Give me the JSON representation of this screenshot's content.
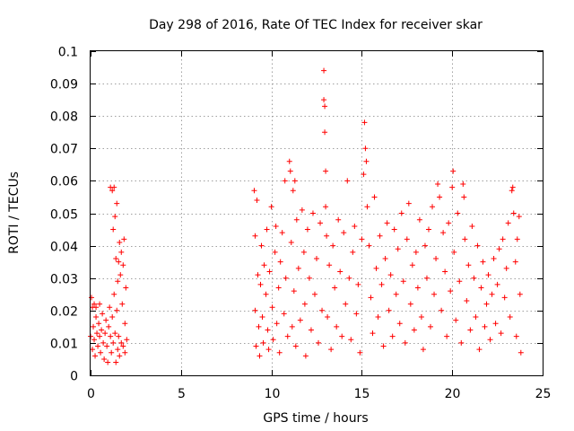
{
  "chart_data": {
    "type": "scatter",
    "title": "Day 298 of 2016, Rate Of TEC Index for receiver skar",
    "xlabel": "GPS time / hours",
    "ylabel": "ROTI / TECUs",
    "xlim": [
      0,
      25
    ],
    "ylim": [
      0,
      0.1
    ],
    "xticks": [
      0,
      5,
      10,
      15,
      20,
      25
    ],
    "xtick_labels": [
      "0",
      "5",
      "10",
      "15",
      "20",
      "25"
    ],
    "yticks": [
      0,
      0.01,
      0.02,
      0.03,
      0.04,
      0.05,
      0.06,
      0.07,
      0.08,
      0.09,
      0.1
    ],
    "ytick_labels": [
      "0",
      "0.01",
      "0.02",
      "0.03",
      "0.04",
      "0.05",
      "0.06",
      "0.07",
      "0.08",
      "0.09",
      "0.1"
    ],
    "grid": true,
    "marker": "+",
    "color": "#ff0000",
    "series": [
      {
        "name": "ROTI",
        "points": [
          [
            0.0,
            0.012
          ],
          [
            0.05,
            0.024
          ],
          [
            0.1,
            0.021
          ],
          [
            0.1,
            0.008
          ],
          [
            0.15,
            0.015
          ],
          [
            0.2,
            0.022
          ],
          [
            0.2,
            0.011
          ],
          [
            0.25,
            0.006
          ],
          [
            0.3,
            0.018
          ],
          [
            0.3,
            0.021
          ],
          [
            0.35,
            0.013
          ],
          [
            0.4,
            0.009
          ],
          [
            0.45,
            0.016
          ],
          [
            0.5,
            0.022
          ],
          [
            0.5,
            0.012
          ],
          [
            0.55,
            0.007
          ],
          [
            0.6,
            0.014
          ],
          [
            0.65,
            0.019
          ],
          [
            0.7,
            0.01
          ],
          [
            0.75,
            0.005
          ],
          [
            0.8,
            0.013
          ],
          [
            0.85,
            0.017
          ],
          [
            0.9,
            0.009
          ],
          [
            0.95,
            0.004
          ],
          [
            1.0,
            0.015
          ],
          [
            1.05,
            0.021
          ],
          [
            1.1,
            0.012
          ],
          [
            1.1,
            0.058
          ],
          [
            1.15,
            0.007
          ],
          [
            1.2,
            0.057
          ],
          [
            1.2,
            0.018
          ],
          [
            1.25,
            0.045
          ],
          [
            1.25,
            0.01
          ],
          [
            1.3,
            0.058
          ],
          [
            1.3,
            0.025
          ],
          [
            1.35,
            0.049
          ],
          [
            1.35,
            0.013
          ],
          [
            1.4,
            0.036
          ],
          [
            1.4,
            0.004
          ],
          [
            1.45,
            0.053
          ],
          [
            1.45,
            0.02
          ],
          [
            1.5,
            0.029
          ],
          [
            1.5,
            0.008
          ],
          [
            1.55,
            0.035
          ],
          [
            1.55,
            0.012
          ],
          [
            1.6,
            0.041
          ],
          [
            1.6,
            0.006
          ],
          [
            1.65,
            0.031
          ],
          [
            1.7,
            0.038
          ],
          [
            1.7,
            0.01
          ],
          [
            1.75,
            0.022
          ],
          [
            1.8,
            0.034
          ],
          [
            1.8,
            0.009
          ],
          [
            1.85,
            0.042
          ],
          [
            1.9,
            0.016
          ],
          [
            1.9,
            0.007
          ],
          [
            1.95,
            0.027
          ],
          [
            2.0,
            0.011
          ],
          [
            9.05,
            0.057
          ],
          [
            9.1,
            0.043
          ],
          [
            9.1,
            0.02
          ],
          [
            9.15,
            0.009
          ],
          [
            9.2,
            0.054
          ],
          [
            9.25,
            0.031
          ],
          [
            9.3,
            0.015
          ],
          [
            9.35,
            0.006
          ],
          [
            9.4,
            0.028
          ],
          [
            9.45,
            0.04
          ],
          [
            9.5,
            0.018
          ],
          [
            9.55,
            0.01
          ],
          [
            9.6,
            0.034
          ],
          [
            9.7,
            0.025
          ],
          [
            9.75,
            0.045
          ],
          [
            9.8,
            0.014
          ],
          [
            9.85,
            0.008
          ],
          [
            9.9,
            0.032
          ],
          [
            10.0,
            0.052
          ],
          [
            10.05,
            0.021
          ],
          [
            10.1,
            0.011
          ],
          [
            10.2,
            0.038
          ],
          [
            10.25,
            0.046
          ],
          [
            10.3,
            0.016
          ],
          [
            10.4,
            0.027
          ],
          [
            10.45,
            0.007
          ],
          [
            10.5,
            0.035
          ],
          [
            10.6,
            0.044
          ],
          [
            10.7,
            0.019
          ],
          [
            10.75,
            0.06
          ],
          [
            10.8,
            0.03
          ],
          [
            10.9,
            0.012
          ],
          [
            11.0,
            0.066
          ],
          [
            11.05,
            0.063
          ],
          [
            11.1,
            0.041
          ],
          [
            11.15,
            0.015
          ],
          [
            11.2,
            0.057
          ],
          [
            11.25,
            0.026
          ],
          [
            11.3,
            0.06
          ],
          [
            11.35,
            0.009
          ],
          [
            11.4,
            0.048
          ],
          [
            11.5,
            0.033
          ],
          [
            11.6,
            0.017
          ],
          [
            11.7,
            0.051
          ],
          [
            11.8,
            0.038
          ],
          [
            11.85,
            0.022
          ],
          [
            11.9,
            0.006
          ],
          [
            12.0,
            0.045
          ],
          [
            12.1,
            0.03
          ],
          [
            12.2,
            0.014
          ],
          [
            12.3,
            0.05
          ],
          [
            12.4,
            0.025
          ],
          [
            12.5,
            0.036
          ],
          [
            12.6,
            0.01
          ],
          [
            12.7,
            0.047
          ],
          [
            12.8,
            0.02
          ],
          [
            12.9,
            0.094
          ],
          [
            12.9,
            0.085
          ],
          [
            12.95,
            0.083
          ],
          [
            12.95,
            0.075
          ],
          [
            13.0,
            0.063
          ],
          [
            13.0,
            0.052
          ],
          [
            13.05,
            0.043
          ],
          [
            13.1,
            0.018
          ],
          [
            13.2,
            0.034
          ],
          [
            13.3,
            0.008
          ],
          [
            13.4,
            0.04
          ],
          [
            13.5,
            0.027
          ],
          [
            13.6,
            0.015
          ],
          [
            13.7,
            0.048
          ],
          [
            13.8,
            0.032
          ],
          [
            13.9,
            0.012
          ],
          [
            14.0,
            0.044
          ],
          [
            14.1,
            0.022
          ],
          [
            14.2,
            0.06
          ],
          [
            14.3,
            0.03
          ],
          [
            14.4,
            0.011
          ],
          [
            14.5,
            0.038
          ],
          [
            14.6,
            0.046
          ],
          [
            14.7,
            0.019
          ],
          [
            14.8,
            0.028
          ],
          [
            14.9,
            0.007
          ],
          [
            15.0,
            0.042
          ],
          [
            15.1,
            0.062
          ],
          [
            15.15,
            0.078
          ],
          [
            15.2,
            0.07
          ],
          [
            15.25,
            0.066
          ],
          [
            15.3,
            0.052
          ],
          [
            15.4,
            0.04
          ],
          [
            15.5,
            0.024
          ],
          [
            15.6,
            0.013
          ],
          [
            15.7,
            0.055
          ],
          [
            15.8,
            0.033
          ],
          [
            15.9,
            0.018
          ],
          [
            16.0,
            0.043
          ],
          [
            16.1,
            0.028
          ],
          [
            16.2,
            0.009
          ],
          [
            16.3,
            0.036
          ],
          [
            16.4,
            0.047
          ],
          [
            16.5,
            0.02
          ],
          [
            16.6,
            0.031
          ],
          [
            16.7,
            0.012
          ],
          [
            16.8,
            0.045
          ],
          [
            16.9,
            0.025
          ],
          [
            17.0,
            0.039
          ],
          [
            17.1,
            0.016
          ],
          [
            17.2,
            0.05
          ],
          [
            17.3,
            0.029
          ],
          [
            17.4,
            0.01
          ],
          [
            17.5,
            0.042
          ],
          [
            17.6,
            0.053
          ],
          [
            17.7,
            0.022
          ],
          [
            17.8,
            0.034
          ],
          [
            17.9,
            0.014
          ],
          [
            18.0,
            0.038
          ],
          [
            18.1,
            0.027
          ],
          [
            18.2,
            0.048
          ],
          [
            18.3,
            0.018
          ],
          [
            18.4,
            0.008
          ],
          [
            18.5,
            0.04
          ],
          [
            18.6,
            0.03
          ],
          [
            18.7,
            0.045
          ],
          [
            18.8,
            0.015
          ],
          [
            18.9,
            0.052
          ],
          [
            19.0,
            0.025
          ],
          [
            19.1,
            0.036
          ],
          [
            19.2,
            0.059
          ],
          [
            19.3,
            0.055
          ],
          [
            19.4,
            0.02
          ],
          [
            19.5,
            0.044
          ],
          [
            19.6,
            0.032
          ],
          [
            19.7,
            0.012
          ],
          [
            19.8,
            0.047
          ],
          [
            19.9,
            0.026
          ],
          [
            20.0,
            0.058
          ],
          [
            20.05,
            0.063
          ],
          [
            20.1,
            0.038
          ],
          [
            20.2,
            0.017
          ],
          [
            20.3,
            0.05
          ],
          [
            20.4,
            0.029
          ],
          [
            20.5,
            0.01
          ],
          [
            20.6,
            0.059
          ],
          [
            20.65,
            0.055
          ],
          [
            20.7,
            0.042
          ],
          [
            20.8,
            0.023
          ],
          [
            20.9,
            0.034
          ],
          [
            21.0,
            0.014
          ],
          [
            21.1,
            0.046
          ],
          [
            21.2,
            0.03
          ],
          [
            21.3,
            0.018
          ],
          [
            21.4,
            0.04
          ],
          [
            21.5,
            0.008
          ],
          [
            21.6,
            0.027
          ],
          [
            21.7,
            0.035
          ],
          [
            21.8,
            0.015
          ],
          [
            21.9,
            0.022
          ],
          [
            22.0,
            0.031
          ],
          [
            22.1,
            0.011
          ],
          [
            22.2,
            0.025
          ],
          [
            22.3,
            0.036
          ],
          [
            22.4,
            0.016
          ],
          [
            22.5,
            0.028
          ],
          [
            22.6,
            0.039
          ],
          [
            22.7,
            0.013
          ],
          [
            22.8,
            0.042
          ],
          [
            22.9,
            0.024
          ],
          [
            23.0,
            0.033
          ],
          [
            23.1,
            0.047
          ],
          [
            23.2,
            0.018
          ],
          [
            23.3,
            0.057
          ],
          [
            23.35,
            0.058
          ],
          [
            23.4,
            0.05
          ],
          [
            23.5,
            0.035
          ],
          [
            23.55,
            0.012
          ],
          [
            23.6,
            0.042
          ],
          [
            23.7,
            0.049
          ],
          [
            23.75,
            0.025
          ],
          [
            23.8,
            0.007
          ]
        ]
      }
    ]
  }
}
